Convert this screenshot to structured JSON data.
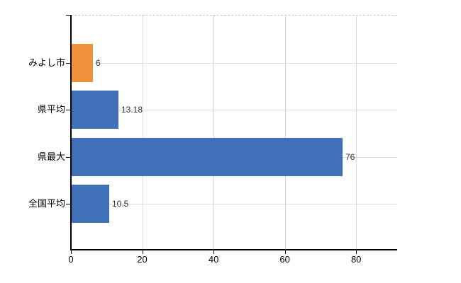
{
  "chart_data": {
    "type": "bar",
    "orientation": "horizontal",
    "title": "",
    "xlabel": "",
    "ylabel": "",
    "categories": [
      "みよし市",
      "県平均",
      "県最大",
      "全国平均"
    ],
    "values": [
      6,
      13.18,
      76,
      10.5
    ],
    "value_labels": [
      "6",
      "13.18",
      "76",
      "10.5"
    ],
    "bar_colors": [
      "#f0913c",
      "#4070b8",
      "#4070b8",
      "#4070b8"
    ],
    "x_ticks": [
      0,
      20,
      40,
      60,
      80
    ],
    "x_tick_labels": [
      "0",
      "20",
      "40",
      "60",
      "80"
    ],
    "xlim": [
      0,
      91.5
    ],
    "grid": true,
    "legend": "none"
  },
  "colors": {
    "accent_orange": "#f0913c",
    "accent_blue": "#4070b8",
    "axis": "#000000",
    "gridline": "#d9ddd9",
    "top_border": "#c9c9c9",
    "value_label": "#333333",
    "tick_label": "#000000",
    "background": "#ffffff"
  }
}
